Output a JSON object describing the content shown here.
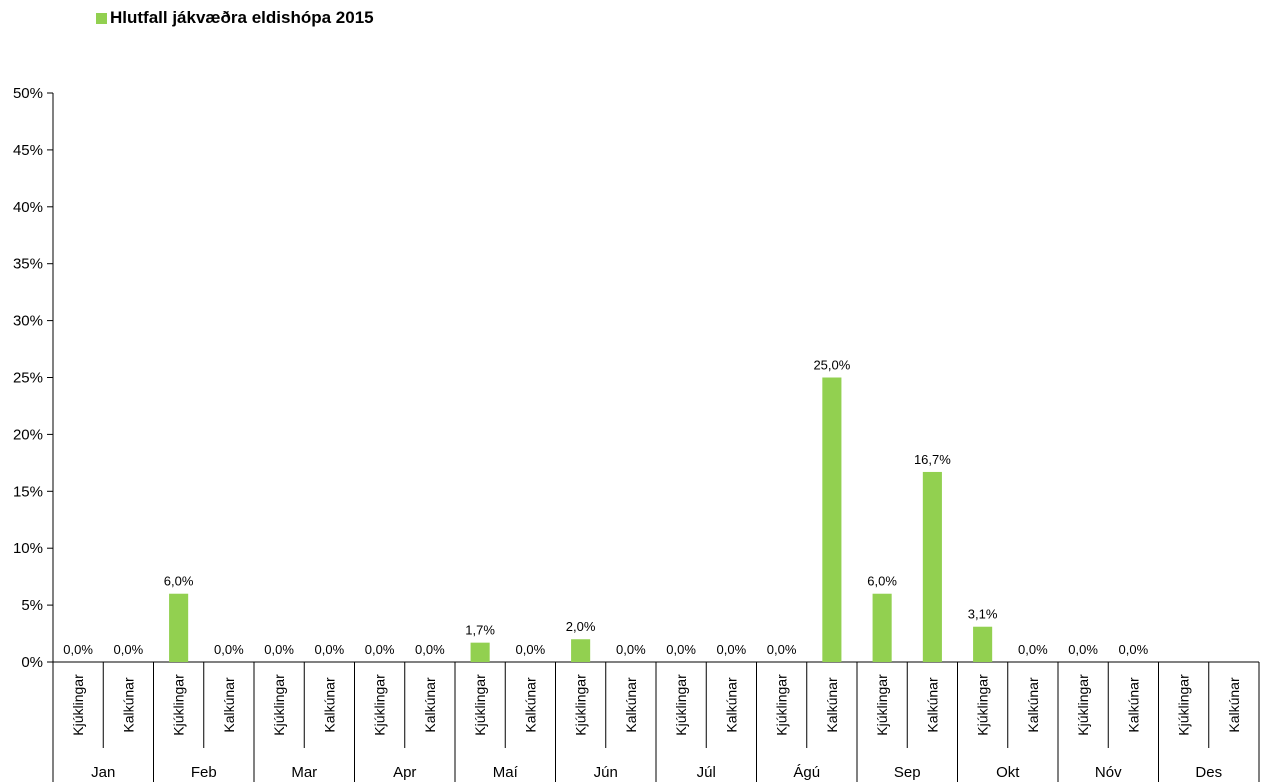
{
  "chart_data": {
    "type": "bar",
    "title": "",
    "legend": {
      "label": "Hlutfall jákvæðra eldishópa 2015",
      "position": "top-left"
    },
    "months": [
      "Jan",
      "Feb",
      "Mar",
      "Apr",
      "Maí",
      "Jún",
      "Júl",
      "Ágú",
      "Sep",
      "Okt",
      "Nóv",
      "Des"
    ],
    "subcategories": [
      "Kjúklingar",
      "Kalkúnar"
    ],
    "series": [
      {
        "name": "Hlutfall jákvæðra eldishópa 2015",
        "color": "#92d050",
        "values": [
          0,
          0,
          6.0,
          0,
          0,
          0,
          0,
          0,
          1.7,
          0,
          2.0,
          0,
          0,
          0,
          0,
          25.0,
          6.0,
          16.7,
          3.1,
          0,
          0,
          0,
          null,
          null
        ],
        "labels": [
          "0,0%",
          "0,0%",
          "6,0%",
          "0,0%",
          "0,0%",
          "0,0%",
          "0,0%",
          "0,0%",
          "1,7%",
          "0,0%",
          "2,0%",
          "0,0%",
          "0,0%",
          "0,0%",
          "0,0%",
          "25,0%",
          "6,0%",
          "16,7%",
          "3,1%",
          "0,0%",
          "0,0%",
          "0,0%",
          "",
          ""
        ]
      }
    ],
    "ylim": [
      0,
      50
    ],
    "yticks": [
      0,
      5,
      10,
      15,
      20,
      25,
      30,
      35,
      40,
      45,
      50
    ],
    "ytick_labels": [
      "0%",
      "5%",
      "10%",
      "15%",
      "20%",
      "25%",
      "30%",
      "35%",
      "40%",
      "45%",
      "50%"
    ],
    "grid": false,
    "xlabel": "",
    "ylabel": ""
  }
}
